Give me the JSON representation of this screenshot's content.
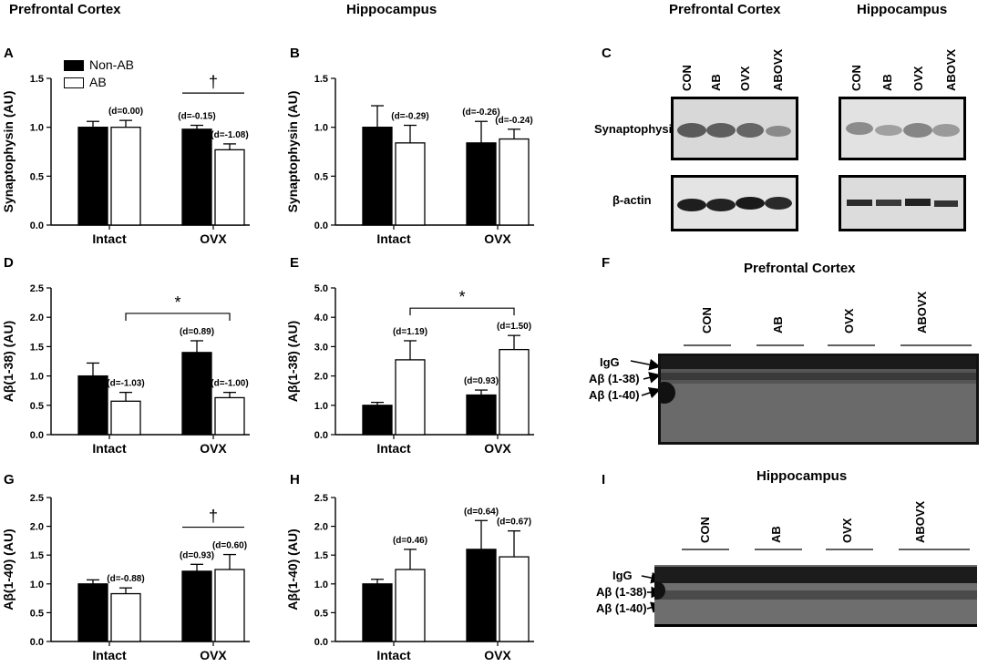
{
  "headers": {
    "col1": "Prefrontal Cortex",
    "col2": "Hippocampus",
    "blot_c_left": "Prefrontal Cortex",
    "blot_c_right": "Hippocampus"
  },
  "panels": {
    "A": "A",
    "B": "B",
    "C": "C",
    "D": "D",
    "E": "E",
    "F": "F",
    "G": "G",
    "H": "H",
    "I": "I"
  },
  "legend": {
    "non_ab": "Non-AB",
    "ab": "AB"
  },
  "colors": {
    "non_ab": "#000000",
    "ab": "#ffffff"
  },
  "chart_data": [
    {
      "id": "A",
      "type": "bar",
      "ylabel": "Synaptophysin (AU)",
      "categories": [
        "Intact",
        "OVX"
      ],
      "ylim": [
        0,
        1.5
      ],
      "yticks": [
        "0.0",
        "0.5",
        "1.0",
        "1.5"
      ],
      "series": [
        {
          "name": "Non-AB",
          "values": [
            1.0,
            0.98
          ],
          "errors": [
            0.06,
            0.04
          ]
        },
        {
          "name": "AB",
          "values": [
            1.0,
            0.77
          ],
          "errors": [
            0.07,
            0.06
          ]
        }
      ],
      "annotations": [
        [
          null,
          "(d=0.00)"
        ],
        [
          "(d=-0.15)",
          "(d=-1.08)"
        ]
      ],
      "bracket": {
        "symbol": "†",
        "between": [
          2,
          3
        ]
      }
    },
    {
      "id": "B",
      "type": "bar",
      "ylabel": "Synaptophysin (AU)",
      "categories": [
        "Intact",
        "OVX"
      ],
      "ylim": [
        0,
        1.5
      ],
      "yticks": [
        "0.0",
        "0.5",
        "1.0",
        "1.5"
      ],
      "series": [
        {
          "name": "Non-AB",
          "values": [
            1.0,
            0.84
          ],
          "errors": [
            0.22,
            0.22
          ]
        },
        {
          "name": "AB",
          "values": [
            0.84,
            0.88
          ],
          "errors": [
            0.18,
            0.1
          ]
        }
      ],
      "annotations": [
        [
          null,
          "(d=-0.29)"
        ],
        [
          "(d=-0.26)",
          "(d=-0.24)"
        ]
      ],
      "bracket": null
    },
    {
      "id": "D",
      "type": "bar",
      "ylabel": "Aβ(1-38) (AU)",
      "categories": [
        "Intact",
        "OVX"
      ],
      "ylim": [
        0,
        2.5
      ],
      "yticks": [
        "0.0",
        "0.5",
        "1.0",
        "1.5",
        "2.0",
        "2.5"
      ],
      "series": [
        {
          "name": "Non-AB",
          "values": [
            1.0,
            1.4
          ],
          "errors": [
            0.22,
            0.2
          ]
        },
        {
          "name": "AB",
          "values": [
            0.57,
            0.63
          ],
          "errors": [
            0.15,
            0.09
          ]
        }
      ],
      "annotations": [
        [
          null,
          "(d=-1.03)"
        ],
        [
          "(d=0.89)",
          "(d=-1.00)"
        ]
      ],
      "bracket": {
        "symbol": "*",
        "between": [
          1,
          3
        ]
      }
    },
    {
      "id": "E",
      "type": "bar",
      "ylabel": "Aβ(1-38) (AU)",
      "categories": [
        "Intact",
        "OVX"
      ],
      "ylim": [
        0,
        5.0
      ],
      "yticks": [
        "0.0",
        "1.0",
        "2.0",
        "3.0",
        "4.0",
        "5.0"
      ],
      "series": [
        {
          "name": "Non-AB",
          "values": [
            1.0,
            1.35
          ],
          "errors": [
            0.1,
            0.17
          ]
        },
        {
          "name": "AB",
          "values": [
            2.55,
            2.9
          ],
          "errors": [
            0.65,
            0.48
          ]
        }
      ],
      "annotations": [
        [
          null,
          "(d=1.19)"
        ],
        [
          "(d=0.93)",
          "(d=1.50)"
        ]
      ],
      "bracket": {
        "symbol": "*",
        "between": [
          1,
          3
        ]
      }
    },
    {
      "id": "G",
      "type": "bar",
      "ylabel": "Aβ(1-40) (AU)",
      "categories": [
        "Intact",
        "OVX"
      ],
      "ylim": [
        0,
        2.5
      ],
      "yticks": [
        "0.0",
        "0.5",
        "1.0",
        "1.5",
        "2.0",
        "2.5"
      ],
      "series": [
        {
          "name": "Non-AB",
          "values": [
            1.0,
            1.22
          ],
          "errors": [
            0.07,
            0.12
          ]
        },
        {
          "name": "AB",
          "values": [
            0.83,
            1.25
          ],
          "errors": [
            0.1,
            0.26
          ]
        }
      ],
      "annotations": [
        [
          null,
          "(d=-0.88)"
        ],
        [
          "(d=0.93)",
          "(d=0.60)"
        ]
      ],
      "bracket": {
        "symbol": "†",
        "between": [
          2,
          3
        ]
      }
    },
    {
      "id": "H",
      "type": "bar",
      "ylabel": "Aβ(1-40) (AU)",
      "categories": [
        "Intact",
        "OVX"
      ],
      "ylim": [
        0,
        2.5
      ],
      "yticks": [
        "0.0",
        "0.5",
        "1.0",
        "1.5",
        "2.0",
        "2.5"
      ],
      "series": [
        {
          "name": "Non-AB",
          "values": [
            1.0,
            1.6
          ],
          "errors": [
            0.08,
            0.5
          ]
        },
        {
          "name": "AB",
          "values": [
            1.25,
            1.47
          ],
          "errors": [
            0.35,
            0.45
          ]
        }
      ],
      "annotations": [
        [
          null,
          "(d=0.46)"
        ],
        [
          "(d=0.64)",
          "(d=0.67)"
        ]
      ],
      "bracket": null
    }
  ],
  "blot_c": {
    "lanes": [
      "CON",
      "AB",
      "OVX",
      "ABOVX"
    ],
    "rows": [
      "Synaptophysin",
      "β-actin"
    ]
  },
  "blot_f": {
    "title": "Prefrontal Cortex",
    "lanes": [
      "CON",
      "AB",
      "OVX",
      "ABOVX"
    ],
    "markers": [
      "IgG",
      "Aβ (1-38)",
      "Aβ (1-40)"
    ]
  },
  "blot_i": {
    "title": "Hippocampus",
    "lanes": [
      "CON",
      "AB",
      "OVX",
      "ABOVX"
    ],
    "markers": [
      "IgG",
      "Aβ (1-38)",
      "Aβ (1-40)"
    ]
  }
}
